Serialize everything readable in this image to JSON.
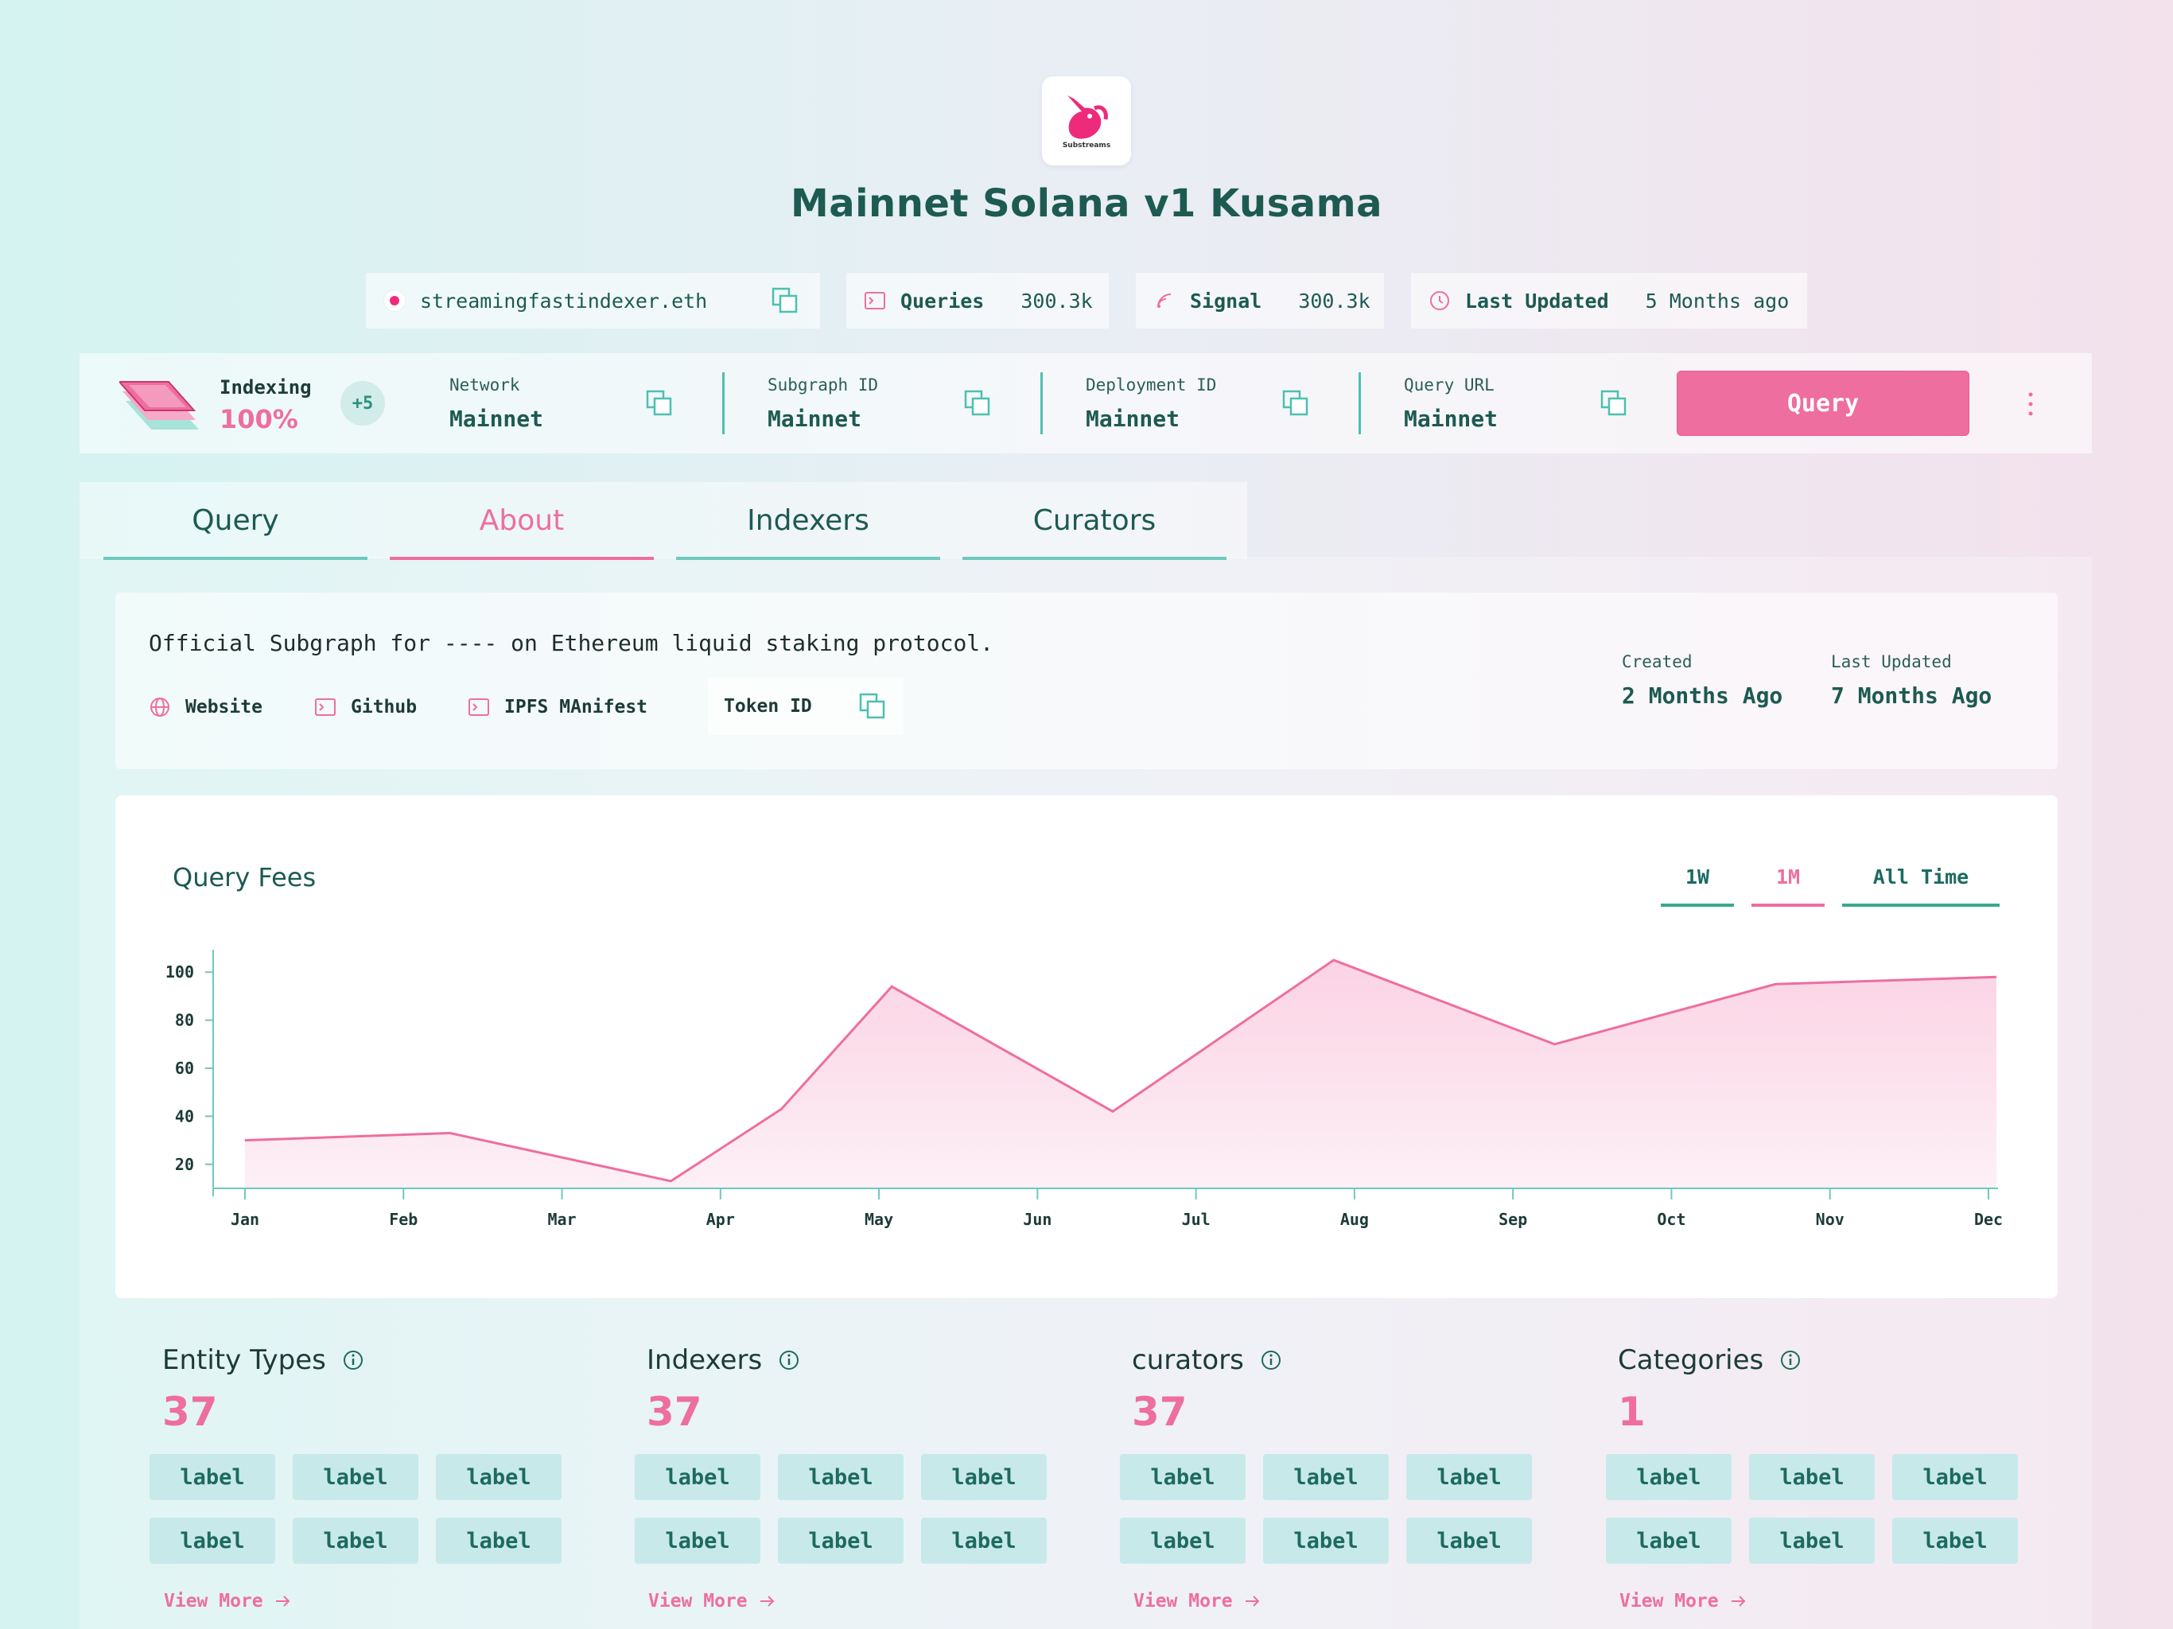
{
  "header": {
    "title": "Mainnet Solana v1 Kusama",
    "logo_text": "Substreams"
  },
  "pills": {
    "owner": "streamingfastindexer.eth",
    "queries_label": "Queries",
    "queries_value": "300.3k",
    "signal_label": "Signal",
    "signal_value": "300.3k",
    "updated_label": "Last Updated",
    "updated_value": "5 Months ago"
  },
  "stats": {
    "indexing_label": "Indexing",
    "indexing_value": "100%",
    "badge": "+5",
    "fields": [
      {
        "label": "Network",
        "value": "Mainnet"
      },
      {
        "label": "Subgraph ID",
        "value": "Mainnet"
      },
      {
        "label": "Deployment ID",
        "value": "Mainnet"
      },
      {
        "label": "Query URL",
        "value": "Mainnet"
      }
    ],
    "query_button": "Query"
  },
  "tabs": [
    "Query",
    "About",
    "Indexers",
    "Curators"
  ],
  "about": {
    "description": "Official Subgraph for ---- on Ethereum liquid staking protocol.",
    "links": [
      "Website",
      "Github",
      "IPFS MAnifest"
    ],
    "token_label": "Token ID",
    "created_label": "Created",
    "created_value": "2 Months Ago",
    "updated_label": "Last Updated",
    "updated_value": "7 Months Ago"
  },
  "chart_title": "Query Fees",
  "ranges": [
    "1W",
    "1M",
    "All Time"
  ],
  "chart_data": {
    "type": "area",
    "title": "Query Fees",
    "x": [
      "Jan",
      "Feb",
      "Mar",
      "Apr",
      "May",
      "Jun",
      "Jul",
      "Aug",
      "Sep",
      "Oct",
      "Nov",
      "Dec"
    ],
    "points": [
      {
        "x": 0.0,
        "y": 30
      },
      {
        "x": 1.3,
        "y": 33
      },
      {
        "x": 2.7,
        "y": 13
      },
      {
        "x": 3.4,
        "y": 43
      },
      {
        "x": 4.1,
        "y": 94
      },
      {
        "x": 5.5,
        "y": 42
      },
      {
        "x": 6.9,
        "y": 105
      },
      {
        "x": 8.3,
        "y": 70
      },
      {
        "x": 9.7,
        "y": 95
      },
      {
        "x": 11.1,
        "y": 98
      }
    ],
    "yticks": [
      20,
      40,
      60,
      80,
      100
    ],
    "ylim": [
      10,
      108
    ],
    "xlim": [
      -0.1,
      11.1
    ],
    "colors": {
      "line": "#ee6e9f",
      "fill": "#fde4ef",
      "axis": "#6fc9bd"
    },
    "grid": false
  },
  "sections": [
    {
      "title": "Entity Types",
      "count": "37",
      "labels": [
        "label",
        "label",
        "label",
        "label",
        "label",
        "label"
      ],
      "more": "View More"
    },
    {
      "title": "Indexers",
      "count": "37",
      "labels": [
        "label",
        "label",
        "label",
        "label",
        "label",
        "label"
      ],
      "more": "View More"
    },
    {
      "title": "curators",
      "count": "37",
      "labels": [
        "label",
        "label",
        "label",
        "label",
        "label",
        "label"
      ],
      "more": "View More"
    },
    {
      "title": "Categories",
      "count": "1",
      "labels": [
        "label",
        "label",
        "label",
        "label",
        "label",
        "label"
      ],
      "more": "View More"
    }
  ]
}
